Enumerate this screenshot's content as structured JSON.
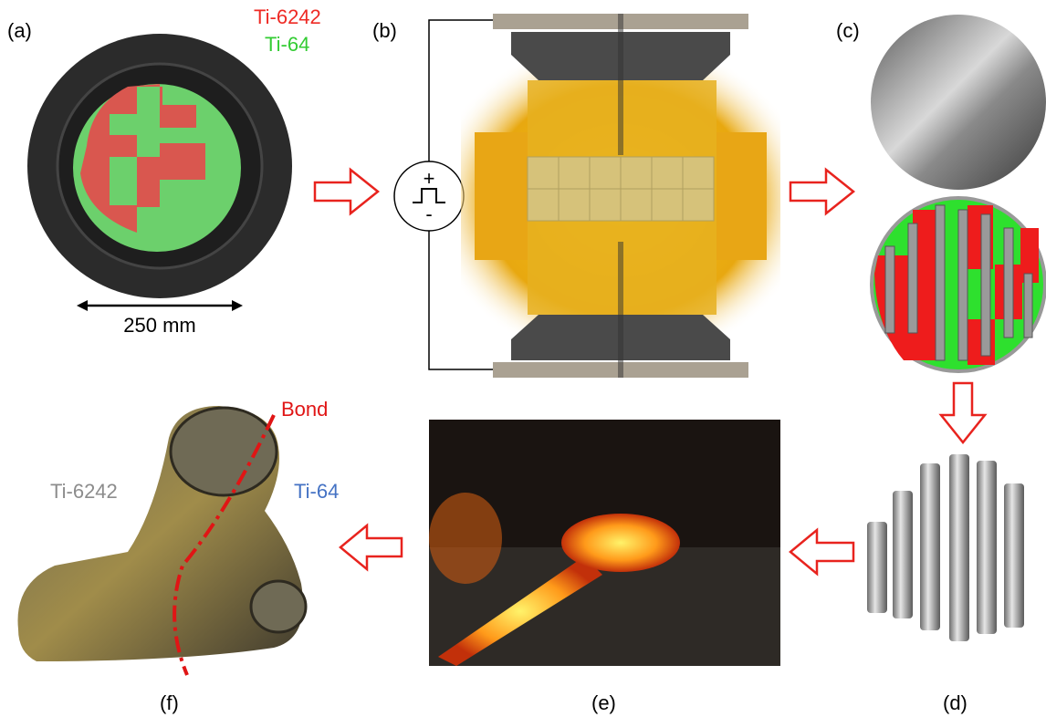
{
  "panels": {
    "a": {
      "label": "(a)",
      "legend": [
        {
          "text": "Ti-6242",
          "color": "#ee2a24"
        },
        {
          "text": "Ti-64",
          "color": "#33cc33"
        }
      ],
      "scale_bar": "250 mm"
    },
    "b": {
      "label": "(b)",
      "plus": "+",
      "minus": "-"
    },
    "c": {
      "label": "(c)"
    },
    "d": {
      "label": "(d)"
    },
    "e": {
      "label": "(e)"
    },
    "f": {
      "label": "(f)",
      "bond": "Bond",
      "left_alloy": "Ti-6242",
      "right_alloy": "Ti-64"
    }
  }
}
